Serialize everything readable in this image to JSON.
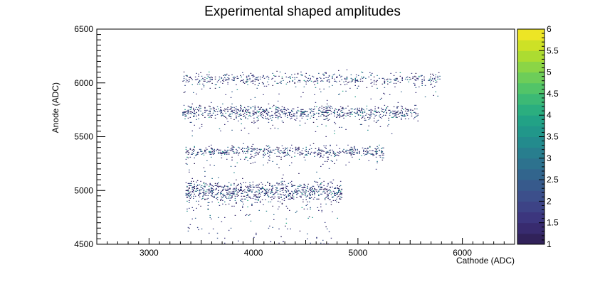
{
  "chart_data": {
    "type": "heatmap",
    "title": "Experimental shaped amplitudes",
    "xlabel": "Cathode (ADC)",
    "ylabel": "Anode (ADC)",
    "xlim": [
      2500,
      6500
    ],
    "ylim": [
      4500,
      6500
    ],
    "x_ticks": [
      "3000",
      "4000",
      "5000",
      "6000"
    ],
    "y_ticks": [
      "4500",
      "5000",
      "5500",
      "6000",
      "6500"
    ],
    "colorbar": {
      "range": [
        1,
        6
      ],
      "tick_labels": [
        "1",
        "1.5",
        "2",
        "2.5",
        "3",
        "3.5",
        "4",
        "4.5",
        "5",
        "5.5",
        "6"
      ],
      "palette": [
        "#352a87",
        "#0f5cdd",
        "#1481d6",
        "#06a4ca",
        "#2eb7a4",
        "#87bf77",
        "#d1bb59",
        "#fec832",
        "#f9fb0e"
      ],
      "colormap": "viridis-like"
    },
    "bands": [
      {
        "anode_center": 6040,
        "cathode_start": 3300,
        "cathode_end": 5800,
        "spread": 30,
        "density": 0.55
      },
      {
        "anode_center": 5730,
        "cathode_start": 3320,
        "cathode_end": 5580,
        "spread": 30,
        "density": 0.9
      },
      {
        "anode_center": 5365,
        "cathode_start": 3350,
        "cathode_end": 5250,
        "spread": 25,
        "density": 0.6
      },
      {
        "anode_center": 5000,
        "cathode_start": 3350,
        "cathode_end": 4850,
        "spread": 45,
        "density": 0.95
      }
    ],
    "bin_count": 3000
  }
}
